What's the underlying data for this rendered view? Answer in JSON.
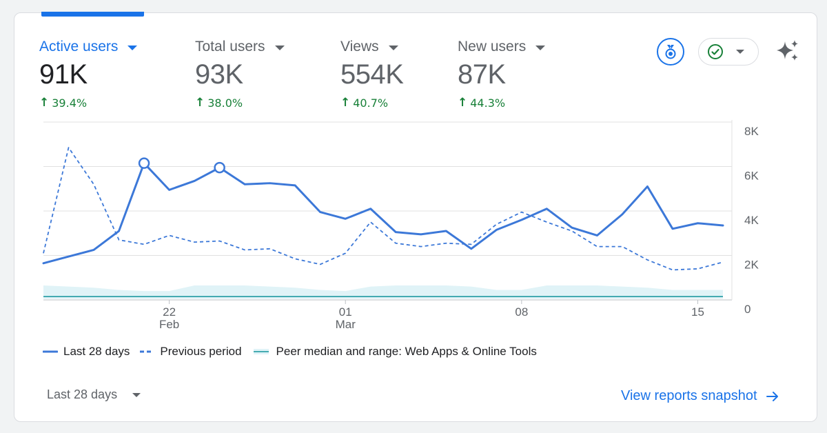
{
  "metrics": [
    {
      "label": "Active users",
      "value": "91K",
      "change": "39.4%",
      "active": true
    },
    {
      "label": "Total users",
      "value": "93K",
      "change": "38.0%",
      "active": false
    },
    {
      "label": "Views",
      "value": "554K",
      "change": "40.7%",
      "active": false
    },
    {
      "label": "New users",
      "value": "87K",
      "change": "44.3%",
      "active": false
    }
  ],
  "toolbar": {
    "award_icon": "medal-icon",
    "status_icon": "check-circle-icon",
    "insights_icon": "sparkle-icon"
  },
  "legend": [
    {
      "label": "Last 28 days",
      "style": "solid"
    },
    {
      "label": "Previous period",
      "style": "dashed"
    },
    {
      "label": "Peer median and range: Web Apps & Online Tools",
      "style": "band"
    }
  ],
  "footer": {
    "range_label": "Last 28 days",
    "snapshot_link": "View reports snapshot"
  },
  "colors": {
    "accent": "#1a73e8",
    "line": "#3c78d8",
    "positive": "#188038",
    "peer_band": "#e0f3f7",
    "peer_line": "#12939a"
  },
  "chart_data": {
    "type": "line",
    "x_tick_labels": [
      {
        "index": 5,
        "label": "22",
        "sublabel": "Feb"
      },
      {
        "index": 12,
        "label": "01",
        "sublabel": "Mar"
      },
      {
        "index": 19,
        "label": "08",
        "sublabel": ""
      },
      {
        "index": 26,
        "label": "15",
        "sublabel": ""
      }
    ],
    "ylim": [
      0,
      8000
    ],
    "y_ticks": [
      {
        "value": 0,
        "label": "0"
      },
      {
        "value": 2000,
        "label": "2K"
      },
      {
        "value": 4000,
        "label": "4K"
      },
      {
        "value": 6000,
        "label": "6K"
      },
      {
        "value": 8000,
        "label": "8K"
      }
    ],
    "n_points": 28,
    "series": [
      {
        "name": "Last 28 days",
        "style": "solid",
        "values": [
          1650,
          1950,
          2250,
          3100,
          6150,
          4950,
          5350,
          5950,
          5200,
          5250,
          5150,
          3950,
          3650,
          4100,
          3050,
          2950,
          3100,
          2300,
          3150,
          3600,
          4100,
          3250,
          2900,
          3850,
          5100,
          3200,
          3450,
          3350
        ],
        "highlight_indices": [
          4,
          7
        ]
      },
      {
        "name": "Previous period",
        "style": "dashed",
        "values": [
          2100,
          6850,
          5200,
          2700,
          2500,
          2900,
          2600,
          2650,
          2250,
          2300,
          1850,
          1600,
          2100,
          3500,
          2550,
          2400,
          2550,
          2500,
          3400,
          3950,
          3500,
          3100,
          2400,
          2400,
          1800,
          1350,
          1400,
          1700
        ]
      },
      {
        "name": "Peer median",
        "style": "band",
        "values": [
          150,
          150,
          150,
          150,
          150,
          150,
          150,
          150,
          150,
          150,
          150,
          150,
          150,
          150,
          150,
          150,
          150,
          150,
          150,
          150,
          150,
          150,
          150,
          150,
          150,
          150,
          150,
          150
        ],
        "range_low": [
          50,
          50,
          50,
          50,
          50,
          50,
          50,
          50,
          50,
          50,
          50,
          50,
          50,
          50,
          50,
          50,
          50,
          50,
          50,
          50,
          50,
          50,
          50,
          50,
          50,
          50,
          50,
          50
        ],
        "range_high": [
          650,
          600,
          550,
          450,
          400,
          400,
          650,
          650,
          650,
          600,
          550,
          450,
          400,
          600,
          650,
          650,
          650,
          600,
          450,
          450,
          650,
          650,
          650,
          600,
          550,
          450,
          450,
          450
        ]
      }
    ]
  }
}
